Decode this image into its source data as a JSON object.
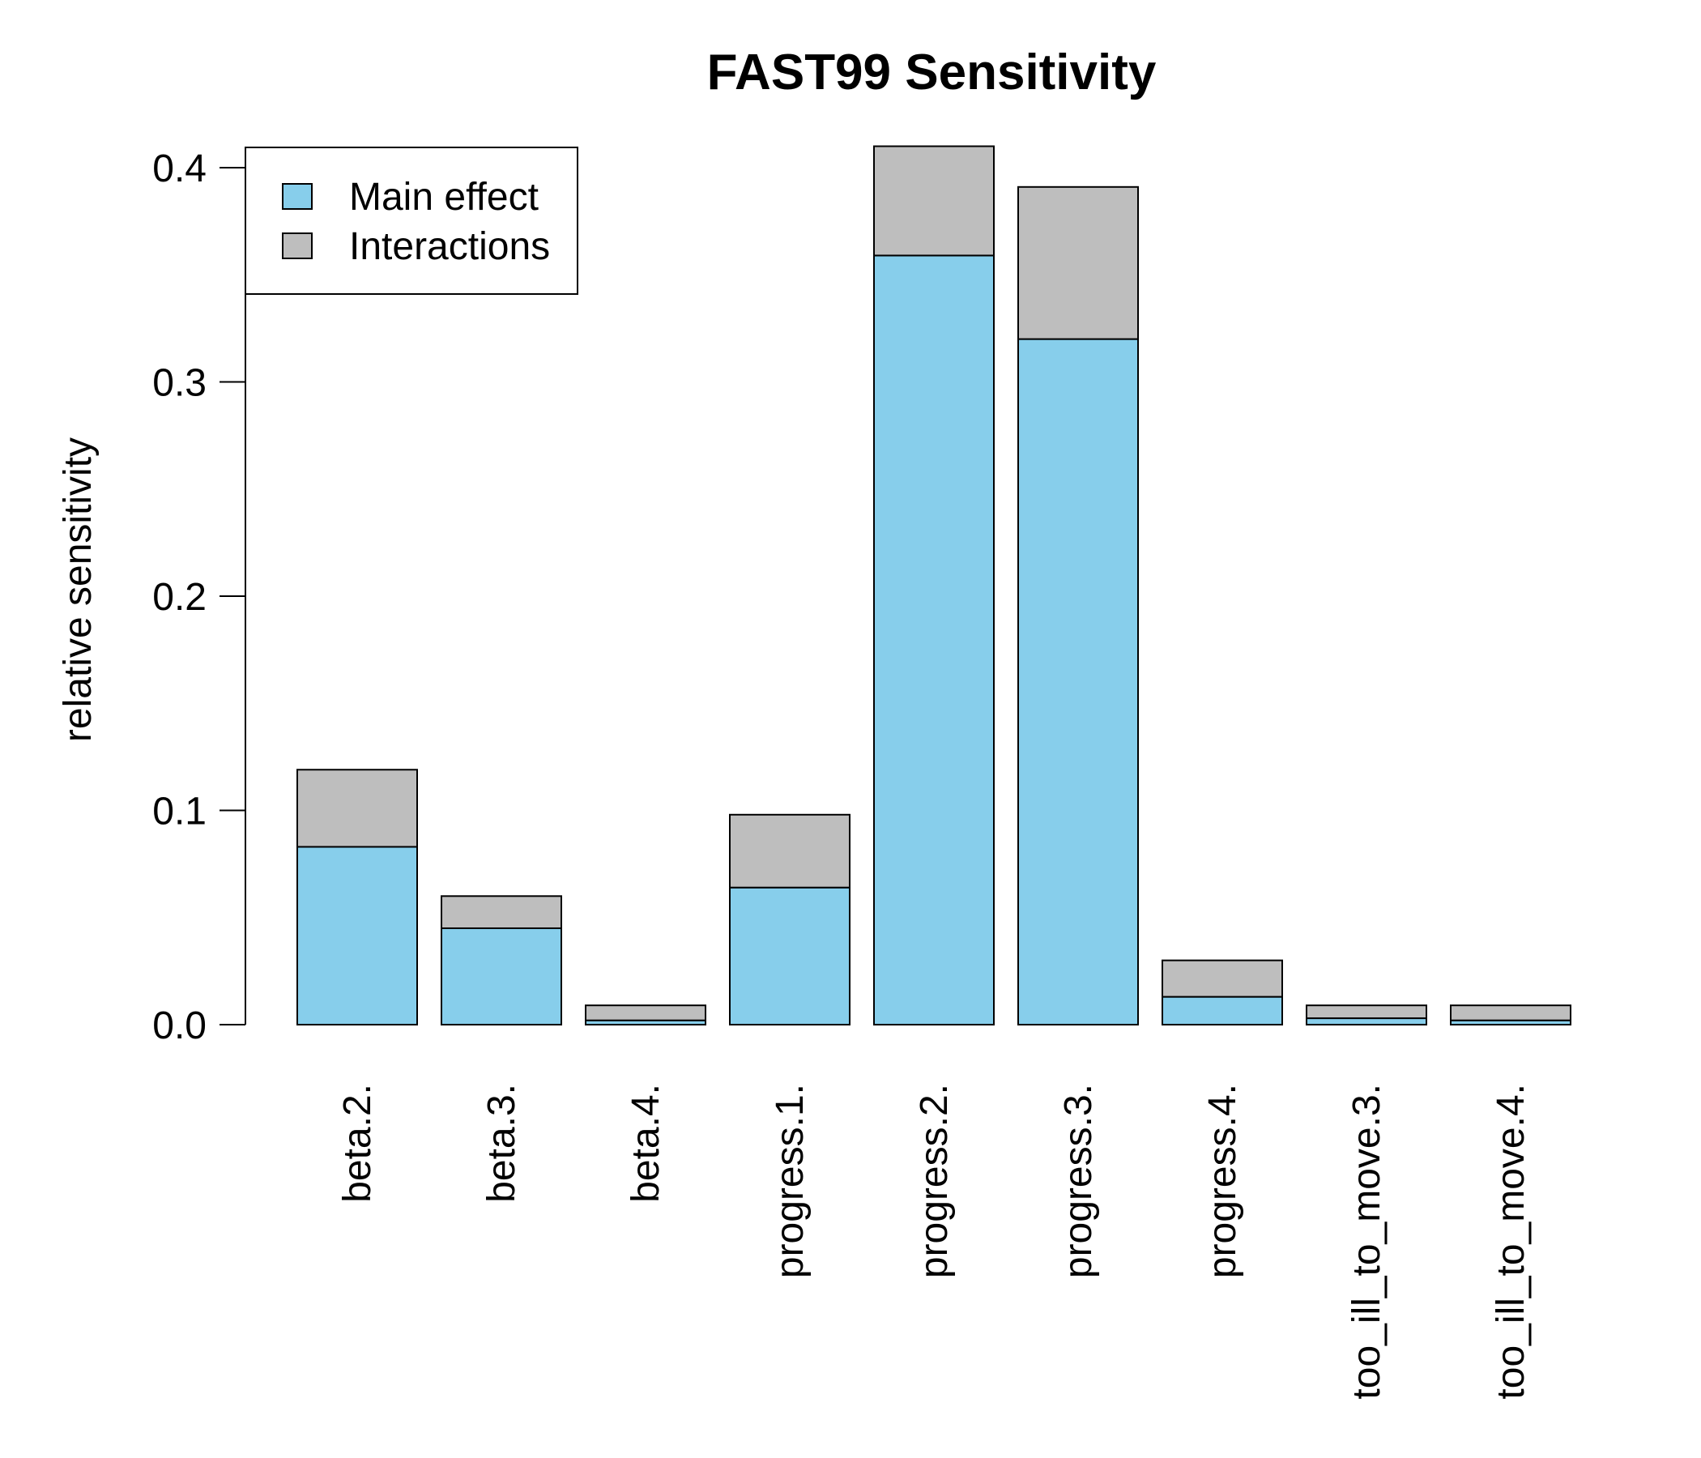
{
  "chart_data": {
    "type": "bar",
    "stacked": true,
    "title": "FAST99 Sensitivity",
    "xlabel": "",
    "ylabel": "relative sensitivity",
    "ylim": [
      0,
      0.4
    ],
    "y_ticks": [
      0.0,
      0.1,
      0.2,
      0.3,
      0.4
    ],
    "y_tick_labels": [
      "0.0",
      "0.1",
      "0.2",
      "0.3",
      "0.4"
    ],
    "categories": [
      "beta.2.",
      "beta.3.",
      "beta.4.",
      "progress.1.",
      "progress.2.",
      "progress.3.",
      "progress.4.",
      "too_ill_to_move.3.",
      "too_ill_to_move.4."
    ],
    "series": [
      {
        "name": "Main effect",
        "color": "#87ceeb",
        "values": [
          0.083,
          0.045,
          0.002,
          0.064,
          0.359,
          0.32,
          0.013,
          0.003,
          0.002
        ]
      },
      {
        "name": "Interactions",
        "color": "#bebebe",
        "values": [
          0.036,
          0.015,
          0.007,
          0.034,
          0.051,
          0.071,
          0.017,
          0.006,
          0.007
        ]
      }
    ],
    "legend_position": "top-left",
    "grid": false
  }
}
